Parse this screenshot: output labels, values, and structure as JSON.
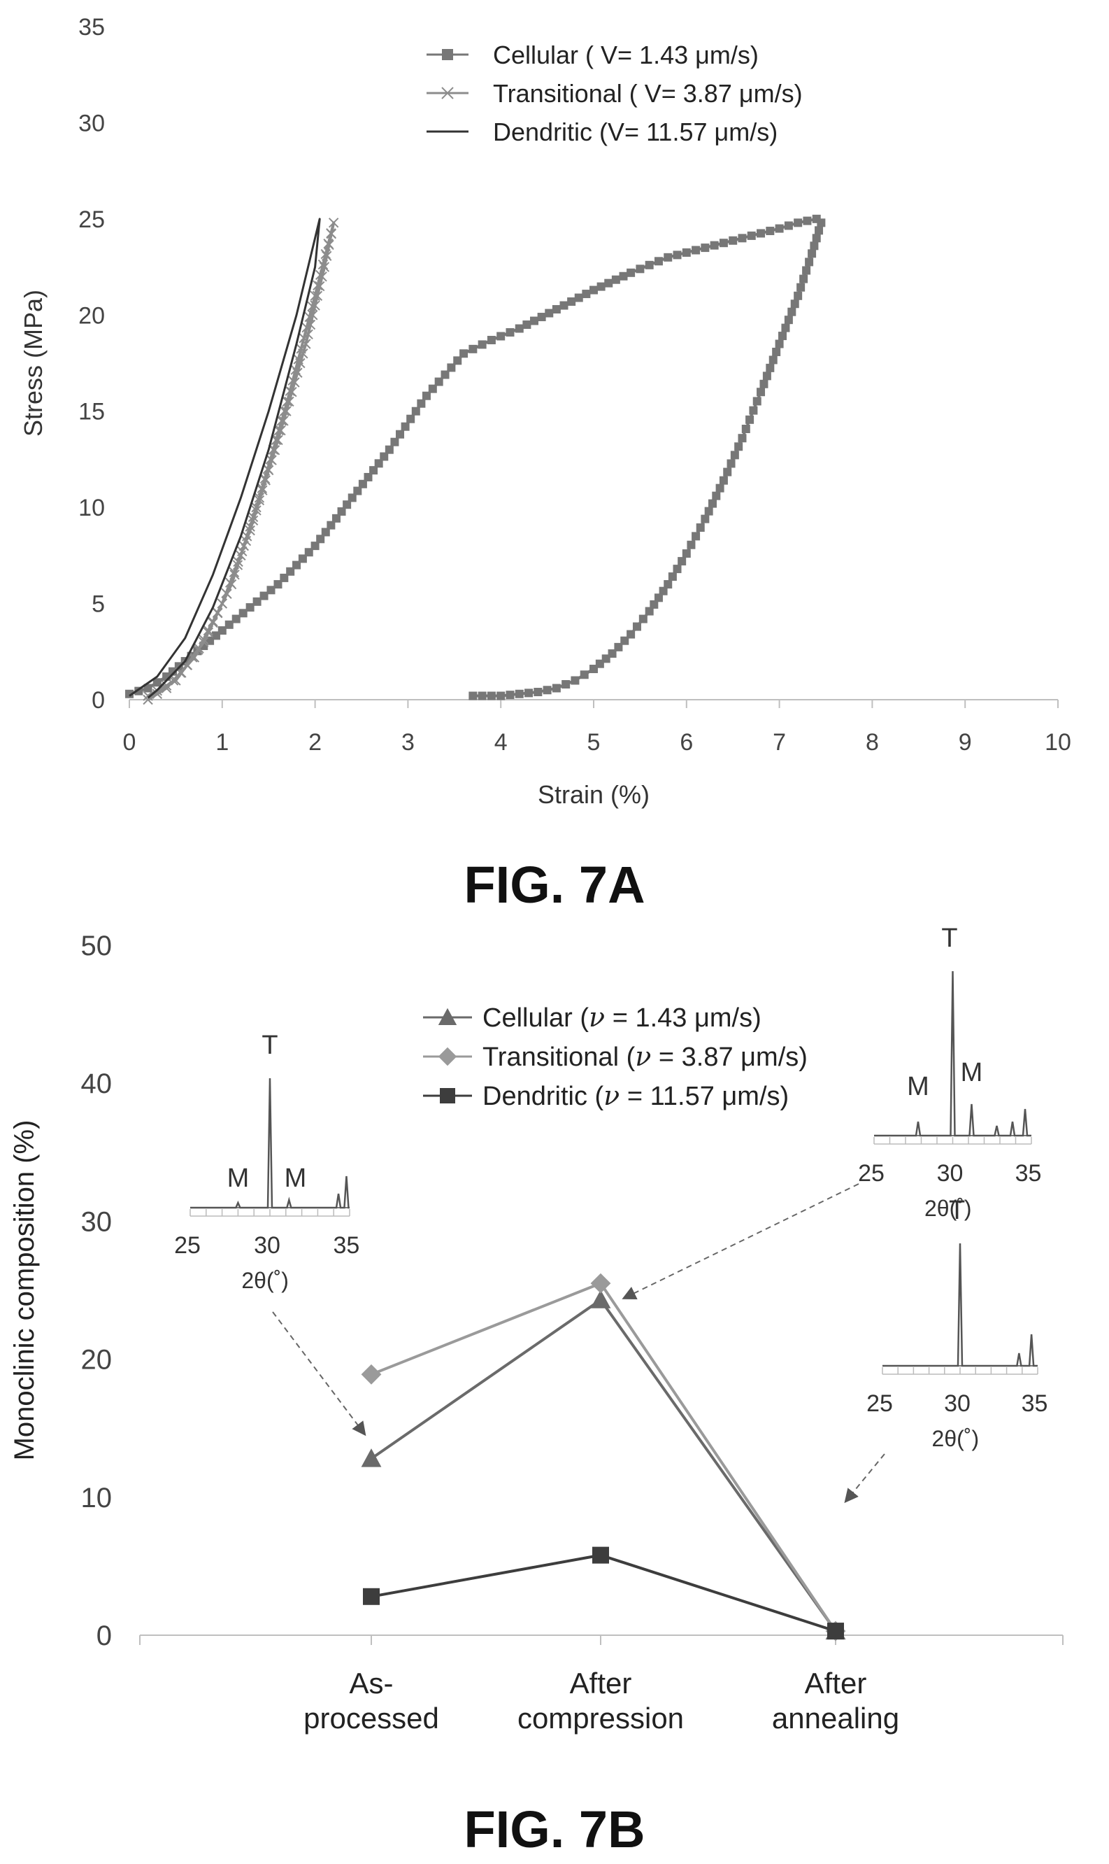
{
  "chart_data": [
    {
      "type": "line",
      "caption": "FIG. 7A",
      "xlabel": "Strain (%)",
      "ylabel": "Stress (MPa)",
      "xlim": [
        0,
        10
      ],
      "ylim": [
        0,
        35
      ],
      "xticks": [
        "0",
        "1",
        "2",
        "3",
        "4",
        "5",
        "6",
        "7",
        "8",
        "9",
        "10"
      ],
      "yticks": [
        "0",
        "5",
        "10",
        "15",
        "20",
        "25",
        "30",
        "35"
      ],
      "grid": false,
      "legend_position": "top-center",
      "series": [
        {
          "name": "Cellular ( V= 1.43 μm/s)",
          "marker": "square",
          "color": "#777777",
          "x": [
            0.0,
            0.2,
            0.4,
            0.6,
            0.8,
            1.0,
            1.3,
            1.6,
            2.0,
            2.4,
            2.8,
            3.2,
            3.6,
            3.9,
            4.2,
            4.6,
            5.0,
            5.4,
            5.8,
            6.2,
            6.6,
            7.0,
            7.2,
            7.4,
            7.45,
            7.35,
            7.2,
            7.0,
            6.8,
            6.6,
            6.4,
            6.2,
            6.0,
            5.8,
            5.6,
            5.4,
            5.2,
            5.0,
            4.8,
            4.6,
            4.4,
            4.2,
            4.0,
            3.8,
            3.7
          ],
          "y": [
            0.3,
            0.6,
            1.2,
            2.0,
            2.8,
            3.6,
            4.8,
            6.0,
            8.0,
            10.5,
            13.0,
            15.8,
            18.0,
            18.7,
            19.3,
            20.3,
            21.3,
            22.2,
            23.0,
            23.5,
            24.0,
            24.5,
            24.8,
            25.0,
            24.8,
            23.2,
            21.0,
            18.5,
            16.0,
            13.6,
            11.4,
            9.4,
            7.6,
            6.0,
            4.6,
            3.4,
            2.4,
            1.6,
            1.0,
            0.6,
            0.4,
            0.3,
            0.2,
            0.2,
            0.2
          ]
        },
        {
          "name": "Transitional ( V= 3.87 μm/s)",
          "marker": "x",
          "color": "#8c8c8c",
          "x": [
            0.2,
            0.5,
            0.8,
            1.1,
            1.4,
            1.7,
            2.0,
            2.2,
            2.1,
            1.9,
            1.6,
            1.3,
            1.0,
            0.7,
            0.4,
            0.2
          ],
          "y": [
            0.2,
            1.0,
            3.0,
            6.0,
            10.5,
            15.5,
            21.0,
            24.8,
            22.5,
            18.5,
            13.5,
            8.8,
            5.0,
            2.2,
            0.6,
            0.0
          ]
        },
        {
          "name": "Dendritic (V= 11.57 μm/s)",
          "marker": "none",
          "color": "#333333",
          "x": [
            0.0,
            0.3,
            0.6,
            0.9,
            1.2,
            1.5,
            1.8,
            2.05,
            2.0,
            1.8,
            1.5,
            1.2,
            0.9,
            0.6,
            0.3,
            0.2
          ],
          "y": [
            0.2,
            1.2,
            3.2,
            6.5,
            10.5,
            15.0,
            20.0,
            25.0,
            22.5,
            18.5,
            13.0,
            8.5,
            4.8,
            2.0,
            0.5,
            0.1
          ]
        }
      ]
    },
    {
      "type": "line",
      "caption": "FIG. 7B",
      "xlabel": "",
      "ylabel": "Monoclinic composition (%)",
      "ylim": [
        0,
        50
      ],
      "yticks": [
        "0",
        "10",
        "20",
        "30",
        "40",
        "50"
      ],
      "categories": [
        [
          "As-",
          "processed"
        ],
        [
          "After",
          "compression"
        ],
        [
          "After",
          "annealing"
        ]
      ],
      "grid": false,
      "legend_position": "top-center",
      "series": [
        {
          "name_prefix": "Cellular (",
          "name_v": "ν",
          "name_suffix": " = 1.43 μm/s)",
          "marker": "triangle",
          "color": "#6a6a6a",
          "values": [
            12.8,
            24.3,
            0.3
          ]
        },
        {
          "name_prefix": "Transitional (",
          "name_v": "ν",
          "name_suffix": " = 3.87 μm/s)",
          "marker": "diamond",
          "color": "#9a9a9a",
          "values": [
            18.9,
            25.5,
            0.3
          ]
        },
        {
          "name_prefix": "Dendritic (",
          "name_v": "ν",
          "name_suffix": " = 11.57 μm/s)",
          "marker": "square",
          "color": "#3d3d3d",
          "values": [
            2.8,
            5.8,
            0.3
          ]
        }
      ],
      "insets": [
        {
          "xlabel": "2θ(˚)",
          "xticks": [
            "25",
            "30",
            "35"
          ],
          "peak_labels": [
            "T",
            "M",
            "M"
          ],
          "points_to_category": 0
        },
        {
          "xlabel": "2θ(˚)",
          "xticks": [
            "25",
            "30",
            "35"
          ],
          "peak_labels": [
            "T",
            "M",
            "M"
          ],
          "points_to_category": 1
        },
        {
          "xlabel": "2θ(˚)",
          "xticks": [
            "25",
            "30",
            "35"
          ],
          "peak_labels": [
            "T"
          ],
          "points_to_category": 2
        }
      ]
    }
  ]
}
